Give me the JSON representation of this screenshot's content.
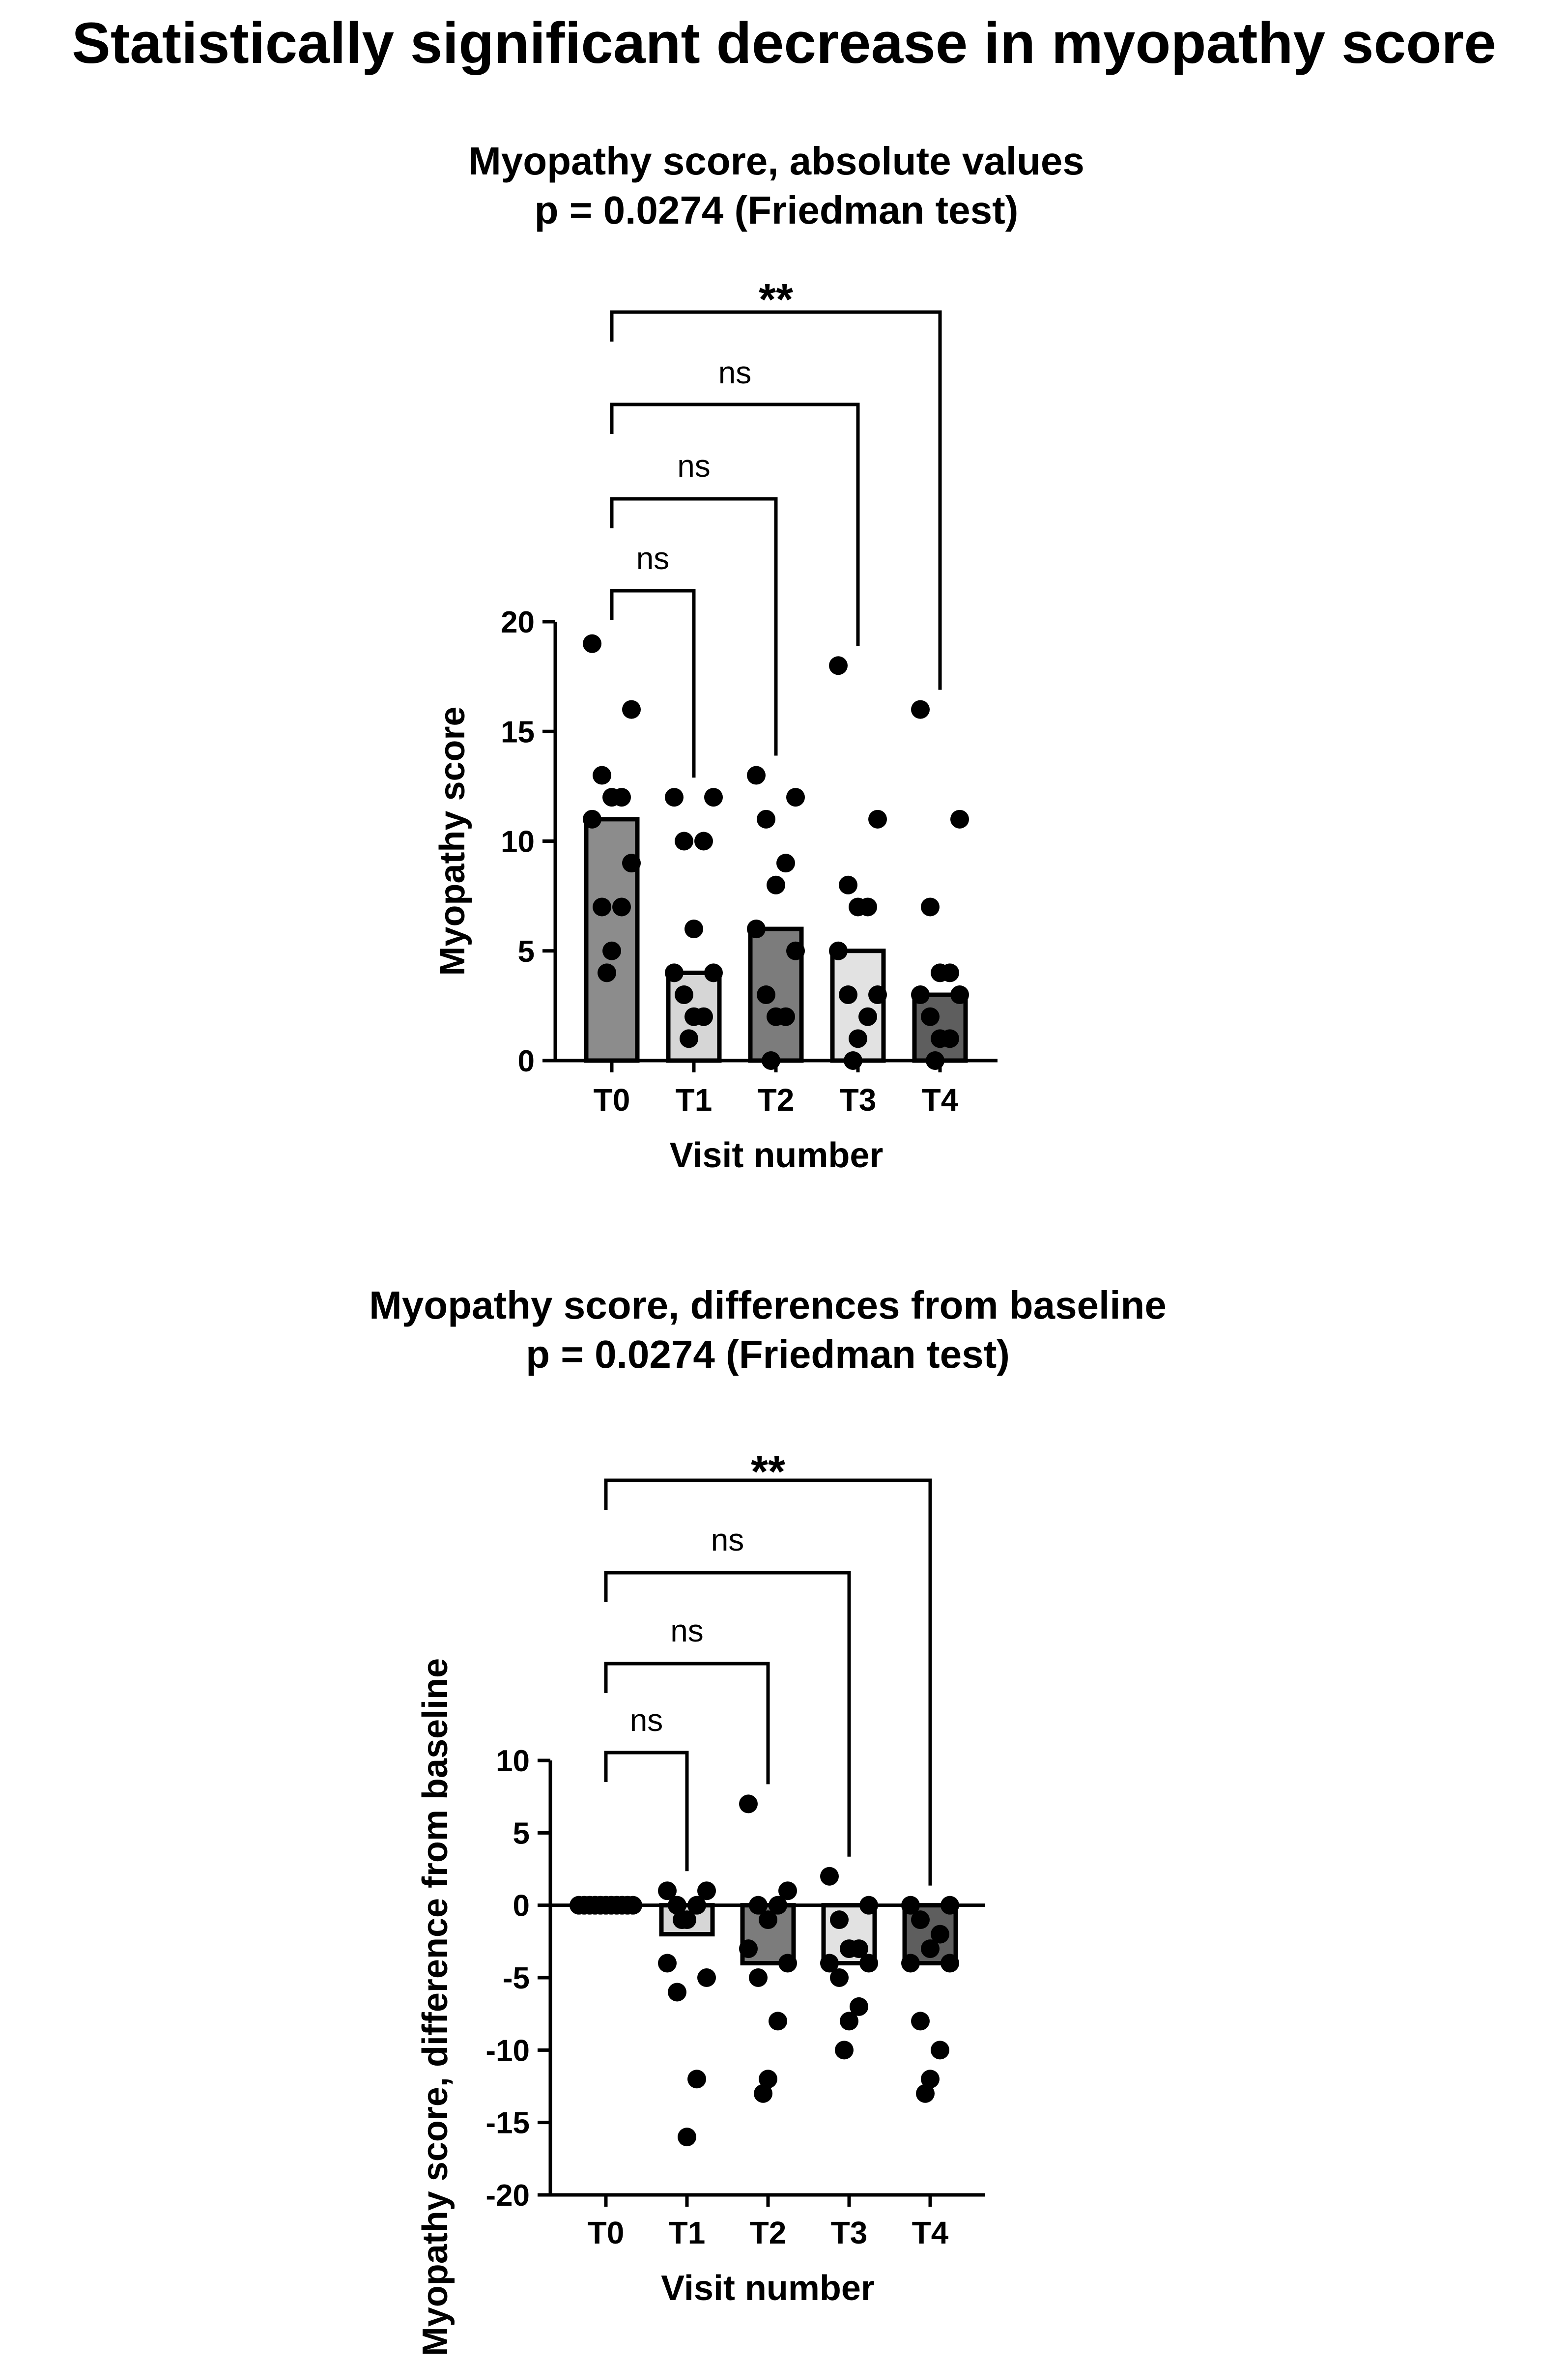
{
  "main_title": "Statistically significant decrease in myopathy score",
  "colors": {
    "T0": "#8c8c8c",
    "T1": "#d6d6d6",
    "T2": "#7c7c7c",
    "T3": "#e2e2e2",
    "T4": "#5e5e5e",
    "point": "#000000"
  },
  "chart_data": [
    {
      "type": "bar",
      "title": "Myopathy score, absolute values",
      "subtitle": "p = 0.0274 (Friedman test)",
      "xlabel": "Visit number",
      "ylabel": "Myopathy score",
      "categories": [
        "T0",
        "T1",
        "T2",
        "T3",
        "T4"
      ],
      "values": [
        11,
        4,
        6,
        5,
        3
      ],
      "ylim": [
        0,
        20
      ],
      "yticks": [
        0,
        5,
        10,
        15,
        20
      ],
      "points": [
        [
          19,
          16,
          13,
          12,
          12,
          11,
          9,
          7,
          7,
          5,
          4
        ],
        [
          12,
          12,
          10,
          10,
          6,
          4,
          4,
          3,
          2,
          2,
          1
        ],
        [
          13,
          12,
          11,
          9,
          8,
          6,
          5,
          3,
          2,
          2,
          0
        ],
        [
          18,
          11,
          8,
          7,
          7,
          5,
          3,
          3,
          2,
          1,
          0
        ],
        [
          16,
          11,
          7,
          4,
          4,
          3,
          3,
          2,
          1,
          1,
          0
        ]
      ],
      "comparisons": [
        {
          "from": "T0",
          "to": "T1",
          "label": "ns"
        },
        {
          "from": "T0",
          "to": "T2",
          "label": "ns"
        },
        {
          "from": "T0",
          "to": "T3",
          "label": "ns"
        },
        {
          "from": "T0",
          "to": "T4",
          "label": "**"
        }
      ],
      "grid": false,
      "legend": "none"
    },
    {
      "type": "bar",
      "title": "Myopathy score, differences from baseline",
      "subtitle": "p = 0.0274 (Friedman test)",
      "xlabel": "Visit number",
      "ylabel": "Myopathy score, difference from baseline",
      "categories": [
        "T0",
        "T1",
        "T2",
        "T3",
        "T4"
      ],
      "values": [
        0,
        -2,
        -4,
        -4,
        -4
      ],
      "ylim": [
        -20,
        10
      ],
      "yticks": [
        -20,
        -15,
        -10,
        -5,
        0,
        5,
        10
      ],
      "zero_line": true,
      "points": [
        [
          0,
          0,
          0,
          0,
          0,
          0,
          0,
          0,
          0,
          0,
          0
        ],
        [
          1,
          1,
          0,
          0,
          -1,
          -4,
          -5,
          -6,
          -12,
          -16,
          -1
        ],
        [
          7,
          1,
          0,
          0,
          -1,
          -3,
          -4,
          -5,
          -8,
          -12,
          -13
        ],
        [
          2,
          0,
          -1,
          -3,
          -3,
          -4,
          -4,
          -5,
          -7,
          -8,
          -10
        ],
        [
          0,
          0,
          -1,
          -2,
          -3,
          -4,
          -4,
          -8,
          -10,
          -12,
          -13
        ]
      ],
      "comparisons": [
        {
          "from": "T0",
          "to": "T1",
          "label": "ns"
        },
        {
          "from": "T0",
          "to": "T2",
          "label": "ns"
        },
        {
          "from": "T0",
          "to": "T3",
          "label": "ns"
        },
        {
          "from": "T0",
          "to": "T4",
          "label": "**"
        }
      ],
      "grid": false,
      "legend": "none"
    }
  ]
}
